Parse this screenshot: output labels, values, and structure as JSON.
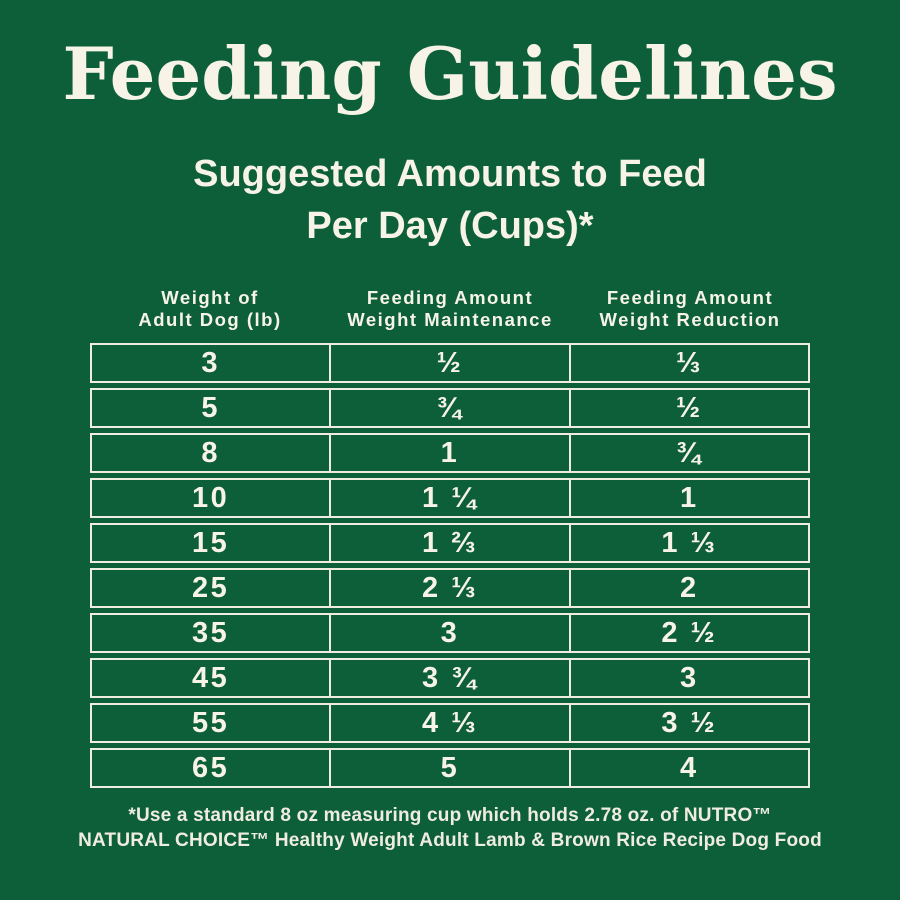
{
  "title": "Feeding Guidelines",
  "subtitle": {
    "line1": "Suggested Amounts to Feed",
    "line2": "Per Day (Cups)*"
  },
  "table": {
    "header_columns": [
      {
        "line1": "Weight of",
        "line2": "Adult Dog (lb)"
      },
      {
        "line1": "Feeding Amount",
        "line2": "Weight Maintenance"
      },
      {
        "line1": "Feeding Amount",
        "line2": "Weight Reduction"
      }
    ]
  },
  "footnote": {
    "line1": "*Use a standard 8 oz measuring cup which holds 2.78 oz. of NUTRO™",
    "line2": "NATURAL CHOICE™ Healthy Weight Adult Lamb & Brown Rice Recipe Dog Food"
  },
  "colors": {
    "background": "#0d5f3a",
    "text_cream": "#f7f3e7",
    "table_border": "#f0ece0"
  },
  "chart_data": {
    "type": "table",
    "title": "Feeding Guidelines",
    "subtitle": "Suggested Amounts to Feed Per Day (Cups)*",
    "columns": [
      "Weight of Adult Dog (lb)",
      "Feeding Amount Weight Maintenance",
      "Feeding Amount Weight Reduction"
    ],
    "rows": [
      [
        "3",
        "½",
        "⅓"
      ],
      [
        "5",
        "¾",
        "½"
      ],
      [
        "8",
        "1",
        "¾"
      ],
      [
        "10",
        "1 ¼",
        "1"
      ],
      [
        "15",
        "1 ⅔",
        "1 ⅓"
      ],
      [
        "25",
        "2 ⅓",
        "2"
      ],
      [
        "35",
        "3",
        "2 ½"
      ],
      [
        "45",
        "3 ¾",
        "3"
      ],
      [
        "55",
        "4 ⅓",
        "3 ½"
      ],
      [
        "65",
        "5",
        "4"
      ]
    ],
    "footnote": "*Use a standard 8 oz measuring cup which holds 2.78 oz. of NUTRO™ NATURAL CHOICE™ Healthy Weight Adult Lamb & Brown Rice Recipe Dog Food",
    "layout": {
      "grid": "cream cell borders on green background",
      "columns_equal_width": true
    }
  }
}
